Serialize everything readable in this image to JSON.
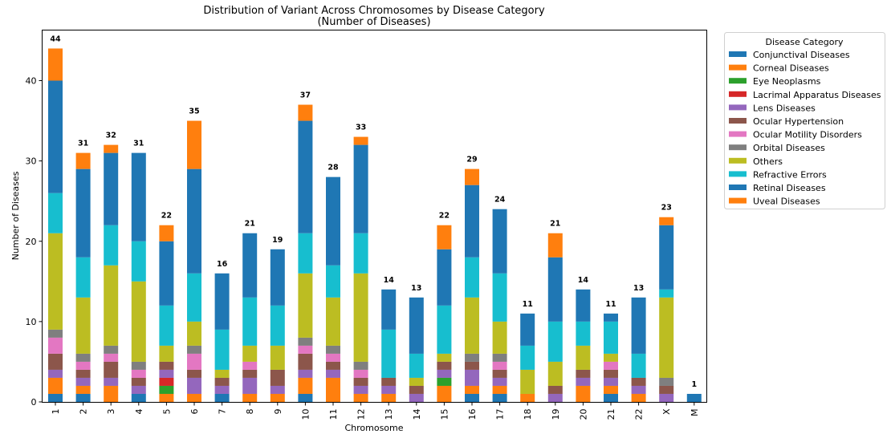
{
  "chart_data": {
    "type": "bar",
    "stacked": true,
    "title": "Distribution of Variant Across Chromosomes by Disease Category",
    "subtitle": "(Number of Diseases)",
    "xlabel": "Chromosome",
    "ylabel": "Number of Diseases",
    "ylim": [
      0,
      46
    ],
    "yticks": [
      0,
      10,
      20,
      30,
      40
    ],
    "grid": false,
    "legend": {
      "title": "Disease Category",
      "placement": "outside-top-right"
    },
    "categories": [
      "1",
      "2",
      "3",
      "4",
      "5",
      "6",
      "7",
      "8",
      "9",
      "10",
      "11",
      "12",
      "13",
      "14",
      "15",
      "16",
      "17",
      "18",
      "19",
      "20",
      "21",
      "22",
      "X",
      "M"
    ],
    "totals": [
      44,
      31,
      32,
      31,
      22,
      35,
      16,
      21,
      19,
      37,
      28,
      33,
      14,
      13,
      22,
      29,
      24,
      11,
      21,
      14,
      11,
      13,
      23,
      1
    ],
    "series": [
      {
        "name": "Conjunctival Diseases",
        "color": "#1f77b4",
        "values": [
          1,
          1,
          0,
          1,
          0,
          0,
          1,
          0,
          0,
          1,
          0,
          0,
          0,
          0,
          0,
          1,
          1,
          0,
          0,
          0,
          1,
          0,
          0,
          1
        ]
      },
      {
        "name": "Corneal Diseases",
        "color": "#ff7f0e",
        "values": [
          2,
          1,
          2,
          0,
          1,
          1,
          0,
          1,
          1,
          2,
          3,
          1,
          1,
          0,
          2,
          1,
          1,
          1,
          0,
          2,
          1,
          1,
          0,
          0
        ]
      },
      {
        "name": "Eye Neoplasms",
        "color": "#2ca02c",
        "values": [
          0,
          0,
          0,
          0,
          1,
          0,
          0,
          0,
          0,
          0,
          0,
          0,
          0,
          0,
          1,
          0,
          0,
          0,
          0,
          0,
          0,
          0,
          0,
          0
        ]
      },
      {
        "name": "Lacrimal Apparatus Diseases",
        "color": "#d62728",
        "values": [
          0,
          0,
          0,
          0,
          1,
          0,
          0,
          0,
          0,
          0,
          0,
          0,
          0,
          0,
          0,
          0,
          0,
          0,
          0,
          0,
          0,
          0,
          0,
          0
        ]
      },
      {
        "name": "Lens Diseases",
        "color": "#9467bd",
        "values": [
          1,
          1,
          1,
          1,
          1,
          2,
          1,
          2,
          1,
          1,
          1,
          1,
          1,
          1,
          1,
          2,
          1,
          0,
          1,
          1,
          1,
          1,
          1,
          0
        ]
      },
      {
        "name": "Ocular Hypertension",
        "color": "#8c564b",
        "values": [
          2,
          1,
          2,
          1,
          1,
          1,
          1,
          1,
          2,
          2,
          1,
          1,
          1,
          1,
          1,
          1,
          1,
          0,
          1,
          1,
          1,
          1,
          1,
          0
        ]
      },
      {
        "name": "Ocular Motility Disorders",
        "color": "#e377c2",
        "values": [
          2,
          1,
          1,
          1,
          0,
          2,
          0,
          1,
          0,
          1,
          1,
          1,
          0,
          0,
          0,
          0,
          1,
          0,
          0,
          0,
          1,
          0,
          0,
          0
        ]
      },
      {
        "name": "Orbital Diseases",
        "color": "#7f7f7f",
        "values": [
          1,
          1,
          1,
          1,
          0,
          1,
          0,
          0,
          0,
          1,
          1,
          1,
          0,
          0,
          0,
          1,
          1,
          0,
          0,
          0,
          0,
          0,
          1,
          0
        ]
      },
      {
        "name": "Others",
        "color": "#bcbd22",
        "values": [
          12,
          7,
          10,
          10,
          2,
          3,
          1,
          2,
          3,
          8,
          6,
          11,
          0,
          1,
          1,
          7,
          4,
          3,
          3,
          3,
          1,
          0,
          10,
          0
        ]
      },
      {
        "name": "Refractive Errors",
        "color": "#17becf",
        "values": [
          5,
          5,
          5,
          5,
          5,
          6,
          5,
          6,
          5,
          5,
          4,
          5,
          6,
          3,
          6,
          5,
          6,
          3,
          5,
          3,
          4,
          3,
          1,
          0
        ]
      },
      {
        "name": "Retinal Diseases",
        "color": "#1f77b4",
        "values": [
          14,
          11,
          9,
          11,
          8,
          13,
          7,
          8,
          7,
          14,
          11,
          11,
          5,
          7,
          7,
          9,
          8,
          4,
          8,
          4,
          1,
          7,
          8,
          0
        ]
      },
      {
        "name": "Uveal Diseases",
        "color": "#ff7f0e",
        "values": [
          4,
          2,
          1,
          0,
          2,
          6,
          0,
          0,
          0,
          2,
          0,
          1,
          0,
          0,
          3,
          2,
          0,
          0,
          3,
          0,
          0,
          0,
          1,
          0
        ]
      }
    ]
  }
}
